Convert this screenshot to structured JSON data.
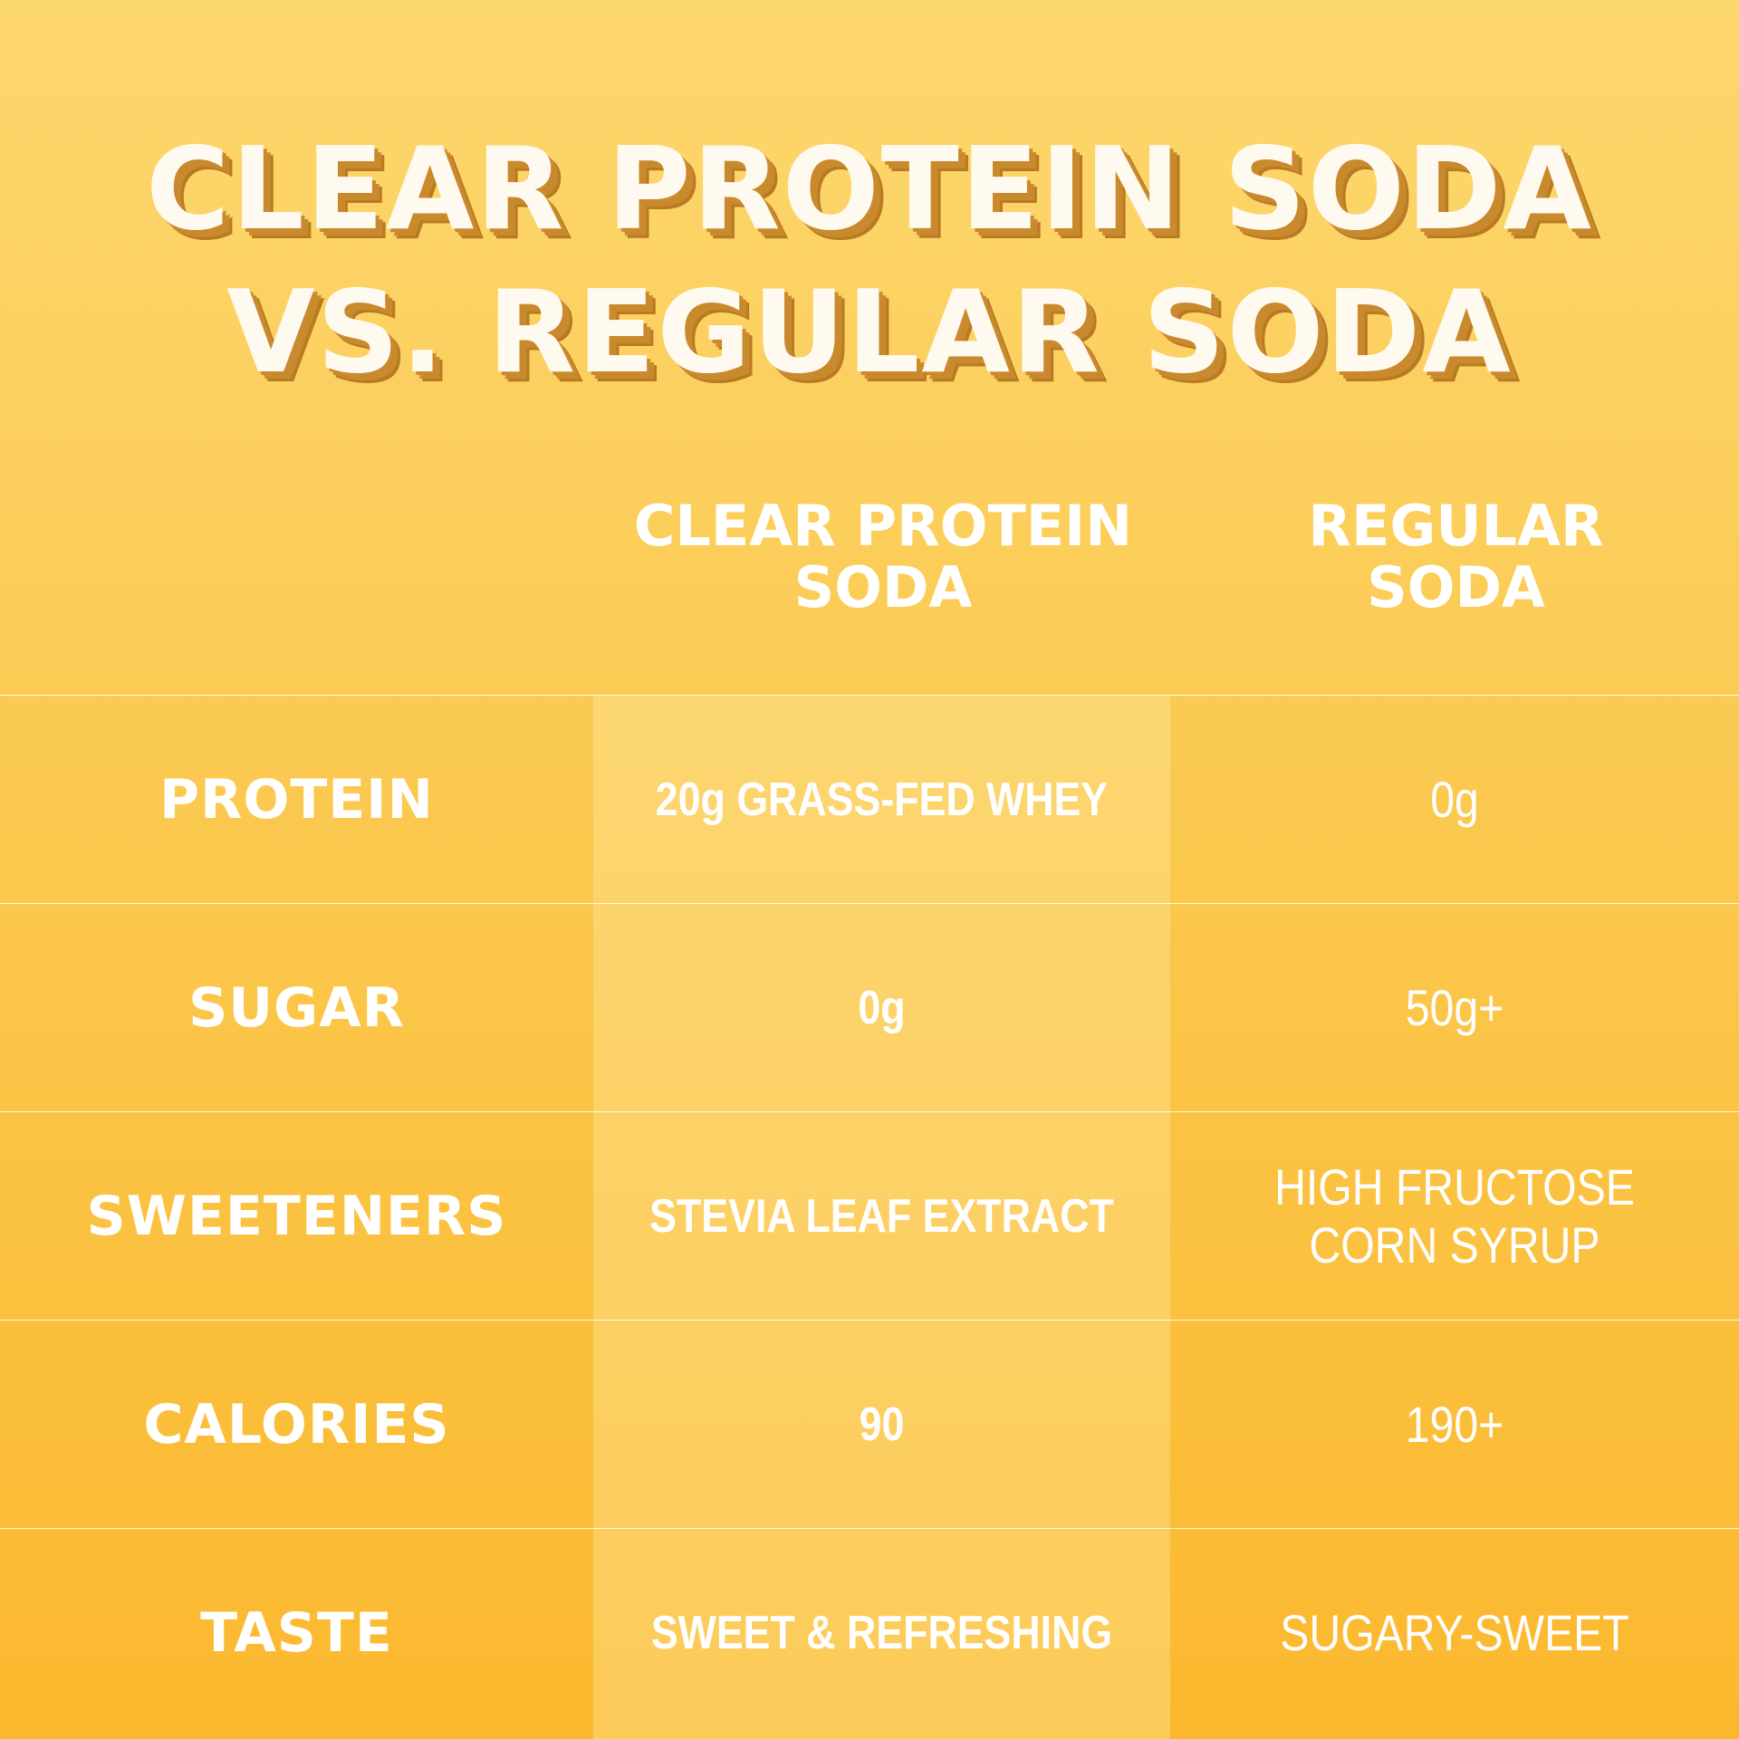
{
  "title": {
    "line1": "CLEAR PROTEIN SODA",
    "line2": "VS. REGULAR SODA"
  },
  "headers": {
    "col1": "CLEAR PROTEIN\nSODA",
    "col2": "REGULAR\nSODA"
  },
  "rows": [
    {
      "label": "PROTEIN",
      "clear": "20g GRASS-FED WHEY",
      "regular": "0g"
    },
    {
      "label": "SUGAR",
      "clear": "0g",
      "regular": "50g+"
    },
    {
      "label": "SWEETENERS",
      "clear": "STEVIA LEAF EXTRACT",
      "regular": "HIGH FRUCTOSE\nCORN SYRUP"
    },
    {
      "label": "CALORIES",
      "clear": "90",
      "regular": "190+"
    },
    {
      "label": "TASTE",
      "clear": "SWEET & REFRESHING",
      "regular": "SUGARY-SWEET"
    }
  ],
  "colors": {
    "background_top": "#fcd76e",
    "background_bottom": "#fbb82e",
    "title_shadow": "#c98a2e",
    "text": "#ffffff"
  }
}
